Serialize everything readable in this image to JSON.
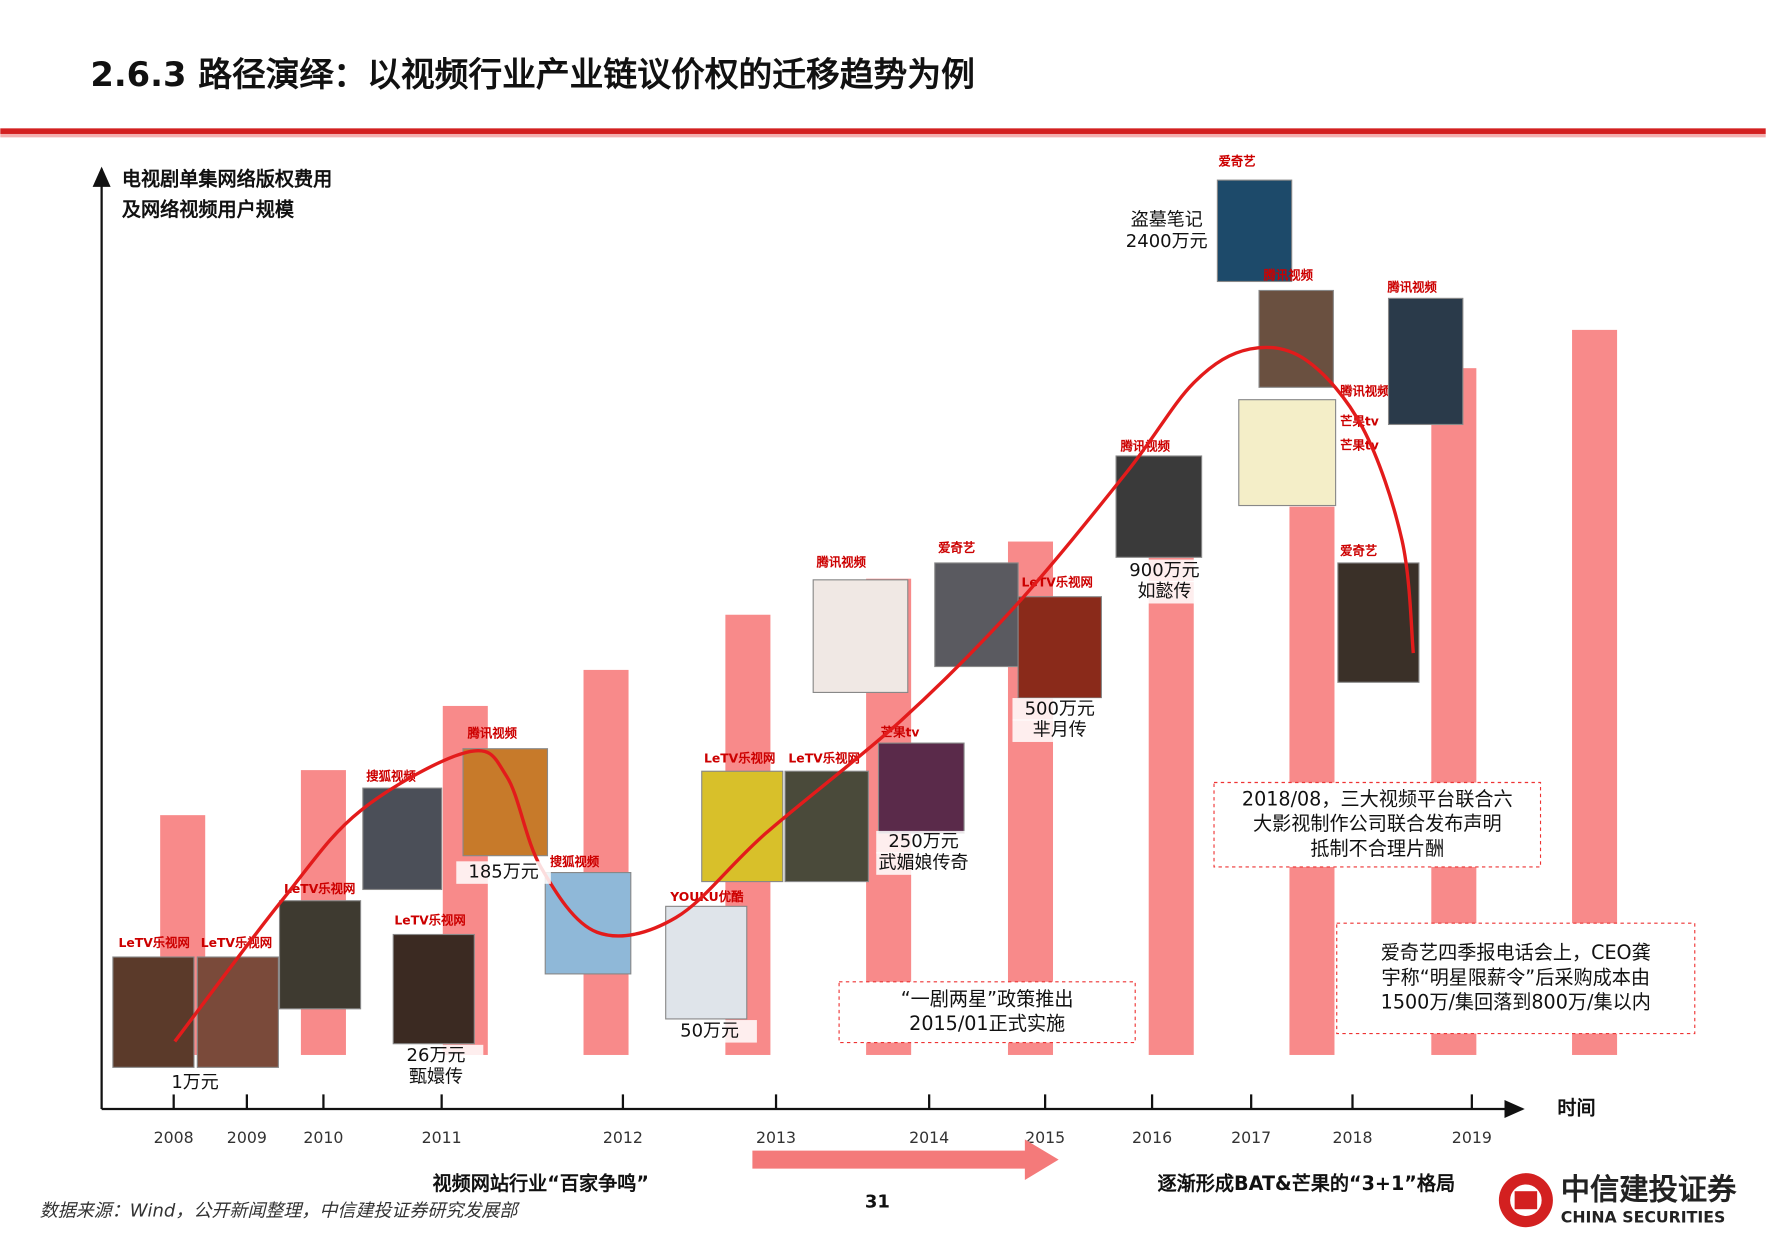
{
  "header": {
    "title": "2.6.3 路径演绎：以视频行业产业链议价权的迁移趋势为例"
  },
  "axis": {
    "y_label": [
      "电视剧单集网络版权费用",
      "及网络视频用户规模"
    ],
    "x_label": "时间",
    "years": [
      "2008",
      "2009",
      "2010",
      "2011",
      "2012",
      "2013",
      "2014",
      "2015",
      "2016",
      "2017",
      "2018",
      "2019"
    ]
  },
  "labels": [
    [
      "1万元"
    ],
    [
      "26万元",
      "甄嬛传"
    ],
    [
      "185万元"
    ],
    [
      "50万元"
    ],
    [
      "250万元",
      "武媚娘传奇"
    ],
    [
      "500万元",
      "芈月传"
    ],
    [
      "900万元",
      "如懿传"
    ],
    [
      "盗墓笔记",
      "2400万元"
    ]
  ],
  "posters": [
    {
      "platform": "LeTV乐视网"
    },
    {
      "platform": "LeTV乐视网"
    },
    {
      "platform": "LeTV乐视网"
    },
    {
      "platform": "搜狐视频"
    },
    {
      "platform": "腾讯视频"
    },
    {
      "platform": "LeTV乐视网"
    },
    {
      "platform": "搜狐视频"
    },
    {
      "platform": "YOUKU优酷"
    },
    {
      "platform": "LeTV乐视网"
    },
    {
      "platform": "LeTV乐视网"
    },
    {
      "platform": "芒果tv"
    },
    {
      "platform": "腾讯视频"
    },
    {
      "platform": "爱奇艺"
    },
    {
      "platform": "LeTV乐视网"
    },
    {
      "platform": "腾讯视频"
    },
    {
      "platform": "爱奇艺"
    },
    {
      "platform": "腾讯视频"
    },
    {
      "platform": "腾讯视频"
    },
    {
      "platform": "腾讯视频"
    },
    {
      "platform": "爱奇艺"
    },
    {
      "platform": "芒果tv"
    }
  ],
  "annotations": [
    [
      "“一剧两星”政策推出",
      "2015/01正式实施"
    ],
    [
      "2018/08，三大视频平台联合六",
      "大影视制作公司联合发布声明",
      "抵制不合理片酬"
    ],
    [
      "爱奇艺四季报电话会上，CEO龚",
      "宇称“明星限薪令”后采购成本由",
      "1500万/集回落到800万/集以内"
    ]
  ],
  "footer": {
    "left_phase": "视频网站行业“百家争鸣”",
    "right_phase": "逐渐形成BAT&芒果的“3+1”格局",
    "source": "数据来源：Wind，公开新闻整理，中信建投证券研究发展部",
    "page": "31",
    "logo_cn": "中信建投证券",
    "logo_en": "CHINA SECURITIES"
  }
}
